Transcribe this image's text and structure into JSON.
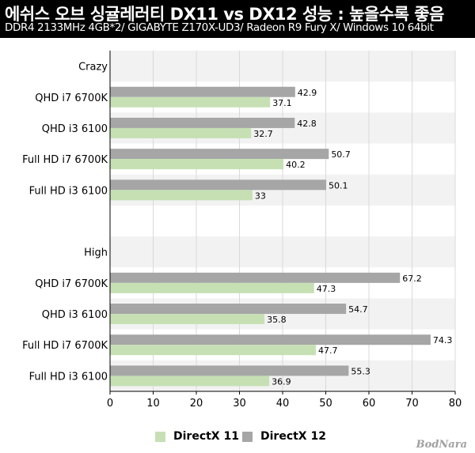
{
  "header": {
    "title": "에쉬스 오브 싱귤레러티 DX11 vs DX12 성능 : 높을수록 좋음",
    "subtitle": "DDR4 2133MHz 4GB*2/ GIGABYTE Z170X-UD3/ Radeon R9 Fury X/ Windows 10 64bit"
  },
  "watermark": "BodNara",
  "colors": {
    "dx11": "#c6e0b4",
    "dx12": "#a6a6a6",
    "band": "#f2f2f2"
  },
  "chart_data": {
    "type": "bar",
    "orientation": "horizontal",
    "categories": [
      "Crazy",
      "QHD i7 6700K",
      "QHD i3 6100",
      "Full HD i7 6700K",
      "Full HD i3 6100",
      "",
      "High",
      "QHD i7 6700K",
      "QHD i3 6100",
      "Full HD i7 6700K",
      "Full HD i3 6100"
    ],
    "series": [
      {
        "name": "DirectX 11",
        "values": [
          null,
          37.1,
          32.7,
          40.2,
          33,
          null,
          null,
          47.3,
          35.8,
          47.7,
          36.9
        ]
      },
      {
        "name": "DirectX 12",
        "values": [
          null,
          42.9,
          42.8,
          50.7,
          50.1,
          null,
          null,
          67.2,
          54.7,
          74.3,
          55.3
        ]
      }
    ],
    "xlim": [
      0,
      80
    ],
    "xticks": [
      "0",
      "10",
      "20",
      "30",
      "40",
      "50",
      "60",
      "70",
      "80"
    ],
    "legend": "bottom-center",
    "grid": true
  }
}
